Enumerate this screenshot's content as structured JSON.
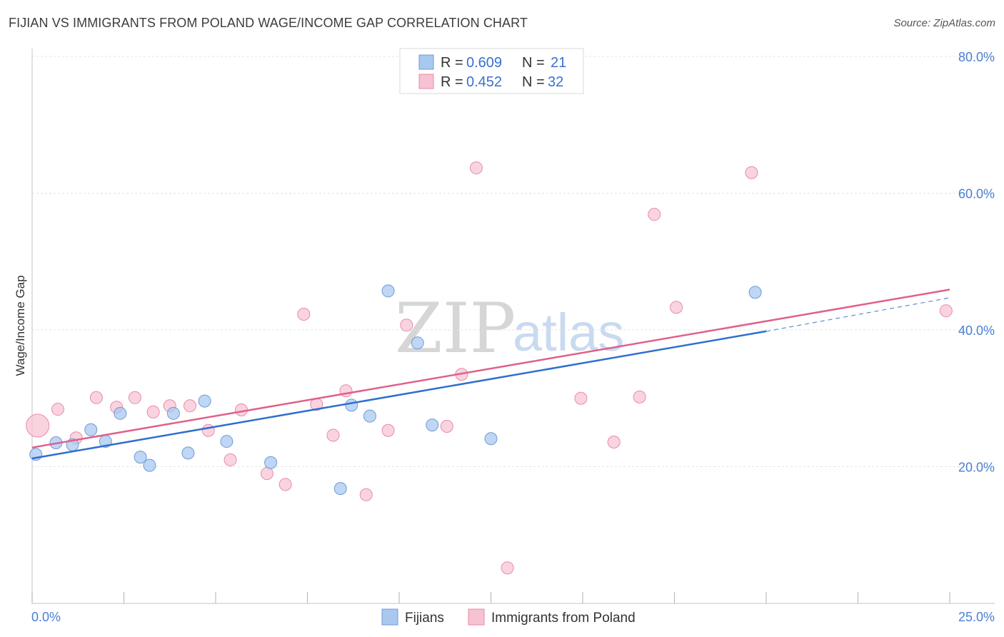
{
  "title": "FIJIAN VS IMMIGRANTS FROM POLAND WAGE/INCOME GAP CORRELATION CHART",
  "source": "Source: ZipAtlas.com",
  "watermark": {
    "part1": "ZIP",
    "part2": "atlas"
  },
  "colors": {
    "fijians_fill": "#a9c8f0",
    "fijians_stroke": "#6d9bd8",
    "fijians_line": "#2f6fd0",
    "poland_fill": "#f7c2d2",
    "poland_stroke": "#e98aa8",
    "poland_line": "#e0608a",
    "tick_text": "#4a7fd4",
    "grid": "#e3e3e3"
  },
  "legend": {
    "series1": {
      "r_label": "R = ",
      "r_value": "0.609",
      "n_label": "N = ",
      "n_value": "21"
    },
    "series2": {
      "r_label": "R = ",
      "r_value": "0.452",
      "n_label": "N = ",
      "n_value": "32"
    }
  },
  "chart_data": {
    "type": "scatter",
    "title": "FIJIAN VS IMMIGRANTS FROM POLAND WAGE/INCOME GAP CORRELATION CHART",
    "xlabel": "",
    "ylabel": "Wage/Income Gap",
    "xlim": [
      0,
      25
    ],
    "ylim": [
      0,
      80
    ],
    "x_tick_labels": [
      "0.0%",
      "25.0%"
    ],
    "y_ticks": [
      {
        "value": 20,
        "label": "20.0%"
      },
      {
        "value": 40,
        "label": "40.0%"
      },
      {
        "value": 60,
        "label": "60.0%"
      },
      {
        "value": 80,
        "label": "80.0%"
      }
    ],
    "grid": true,
    "legend_position": "top-center",
    "series": [
      {
        "name": "Fijians",
        "points": [
          [
            0.1,
            21.8
          ],
          [
            0.65,
            23.5
          ],
          [
            1.1,
            23.2
          ],
          [
            1.6,
            25.4
          ],
          [
            2.0,
            23.7
          ],
          [
            2.4,
            27.8
          ],
          [
            2.95,
            21.4
          ],
          [
            3.2,
            20.2
          ],
          [
            3.85,
            27.8
          ],
          [
            4.25,
            22.0
          ],
          [
            4.7,
            29.6
          ],
          [
            5.3,
            23.7
          ],
          [
            6.5,
            20.6
          ],
          [
            8.4,
            16.8
          ],
          [
            8.7,
            29.0
          ],
          [
            9.2,
            27.4
          ],
          [
            9.7,
            45.7
          ],
          [
            10.5,
            38.1
          ],
          [
            10.9,
            26.1
          ],
          [
            12.5,
            24.1
          ],
          [
            19.7,
            45.5
          ]
        ],
        "trend": {
          "x": [
            0.0,
            20.0
          ],
          "y": [
            21.2,
            39.8
          ],
          "dashed_extension": {
            "x": [
              20.0,
              25.0
            ],
            "y": [
              39.8,
              44.7
            ]
          }
        }
      },
      {
        "name": "Immigrants from Poland",
        "points": [
          [
            0.15,
            26.0
          ],
          [
            0.7,
            28.4
          ],
          [
            1.2,
            24.2
          ],
          [
            1.75,
            30.1
          ],
          [
            2.3,
            28.7
          ],
          [
            2.8,
            30.1
          ],
          [
            3.3,
            28.0
          ],
          [
            3.75,
            28.9
          ],
          [
            4.3,
            28.9
          ],
          [
            4.8,
            25.3
          ],
          [
            5.4,
            21.0
          ],
          [
            5.7,
            28.3
          ],
          [
            6.4,
            19.0
          ],
          [
            6.9,
            17.4
          ],
          [
            7.4,
            42.3
          ],
          [
            7.75,
            29.1
          ],
          [
            8.2,
            24.6
          ],
          [
            8.55,
            31.1
          ],
          [
            9.1,
            15.9
          ],
          [
            9.7,
            25.3
          ],
          [
            10.2,
            40.7
          ],
          [
            11.3,
            25.9
          ],
          [
            11.7,
            33.5
          ],
          [
            12.1,
            63.7
          ],
          [
            12.95,
            5.2
          ],
          [
            14.95,
            30.0
          ],
          [
            15.85,
            23.6
          ],
          [
            16.55,
            30.2
          ],
          [
            16.95,
            56.9
          ],
          [
            17.55,
            43.3
          ],
          [
            19.6,
            63.0
          ],
          [
            24.9,
            42.8
          ]
        ],
        "trend": {
          "x": [
            0.0,
            25.0
          ],
          "y": [
            22.8,
            45.9
          ]
        }
      }
    ]
  },
  "bottom_legend": {
    "item1": "Fijians",
    "item2": "Immigrants from Poland"
  }
}
